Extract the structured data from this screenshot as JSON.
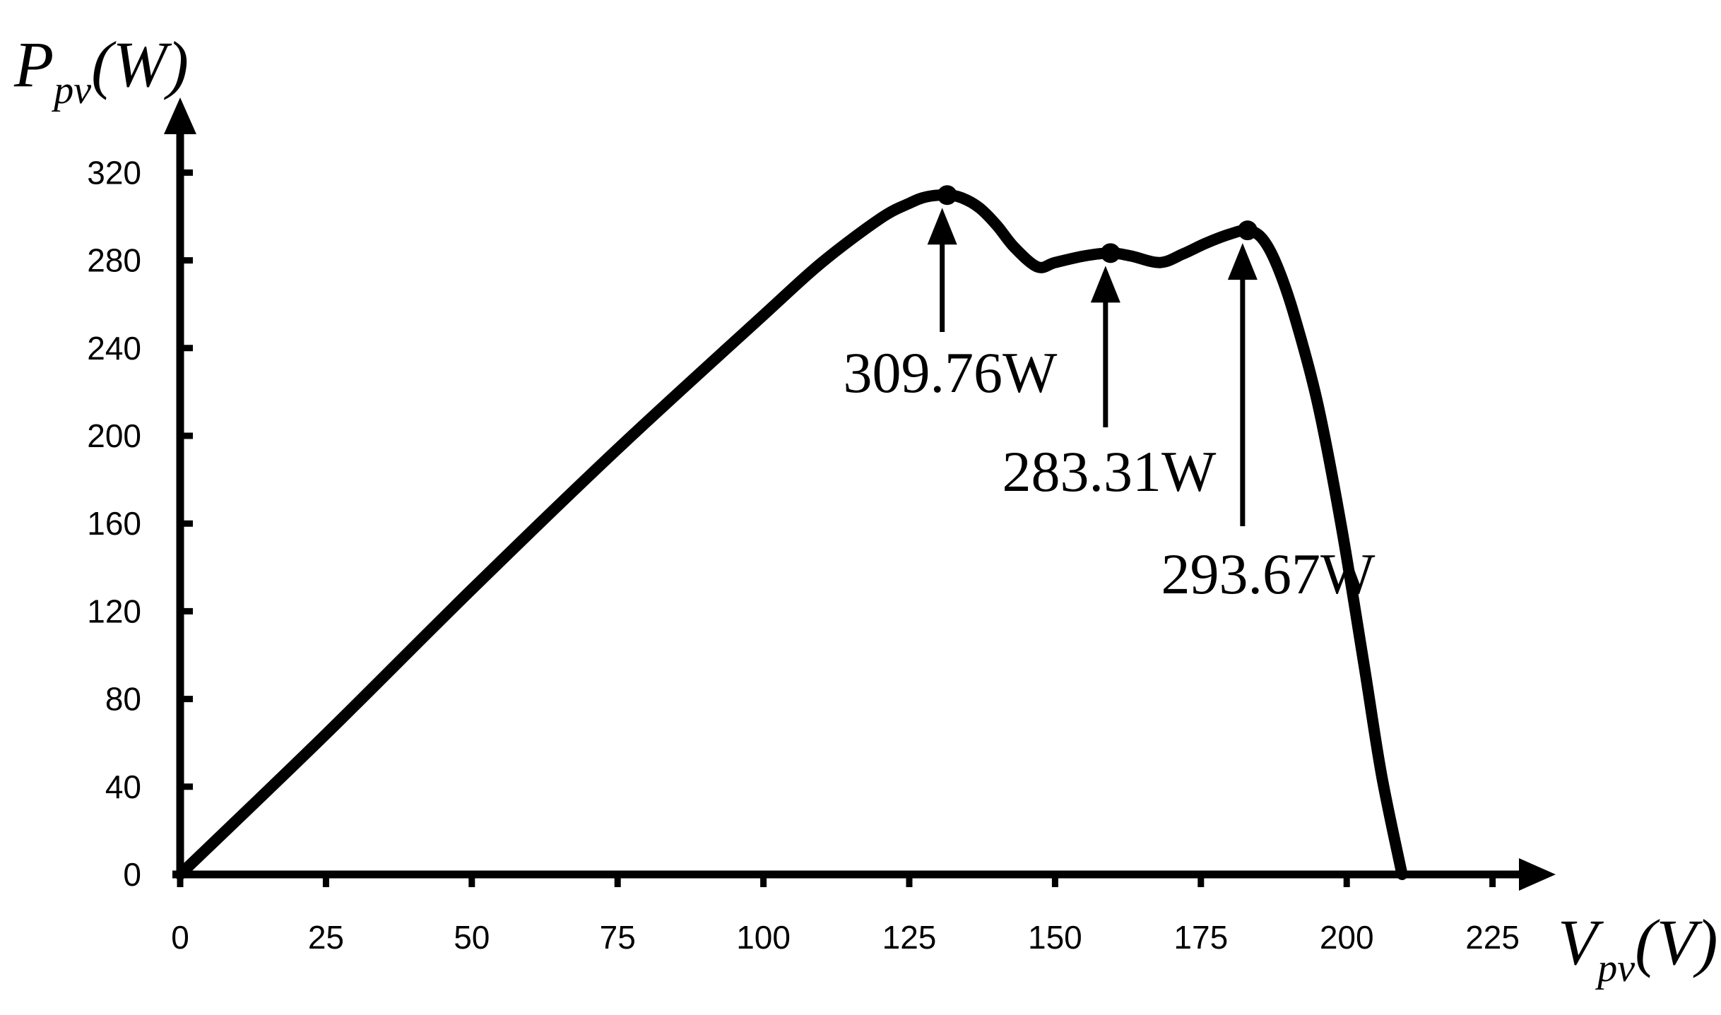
{
  "chart_data": {
    "type": "line",
    "xlabel": {
      "main": "V",
      "sub": "pv",
      "unit": "(V)"
    },
    "ylabel": {
      "main": "P",
      "sub": "pv",
      "unit": "(W)"
    },
    "xlim": [
      0,
      235
    ],
    "ylim": [
      0,
      345
    ],
    "x_ticks": [
      0,
      25,
      50,
      75,
      100,
      125,
      150,
      175,
      200,
      225
    ],
    "y_ticks": [
      0,
      40,
      80,
      120,
      160,
      200,
      240,
      280,
      320
    ],
    "grid": false,
    "series": [
      {
        "color": "#000000",
        "x": [
          0,
          25,
          50,
          75,
          100,
          110,
          120,
          125,
          128,
          131.5,
          134,
          137,
          140,
          143,
          147,
          150,
          155,
          159.5,
          163,
          168,
          172,
          176,
          180,
          183,
          185.5,
          188,
          191,
          195,
          199,
          203,
          206,
          209.5
        ],
        "y": [
          0,
          64,
          130,
          194,
          255,
          279,
          299,
          306,
          309,
          309.76,
          308.5,
          304,
          296,
          286,
          277,
          279,
          282,
          283.31,
          282,
          279,
          283,
          288,
          292,
          293.67,
          290,
          278,
          255,
          215,
          160,
          95,
          45,
          0
        ]
      }
    ],
    "annotations": [
      {
        "label": "309.76W",
        "x": 131.5,
        "y": 309.76
      },
      {
        "label": "283.31W",
        "x": 159.5,
        "y": 283.31
      },
      {
        "label": "293.67W",
        "x": 183,
        "y": 293.67
      }
    ]
  }
}
